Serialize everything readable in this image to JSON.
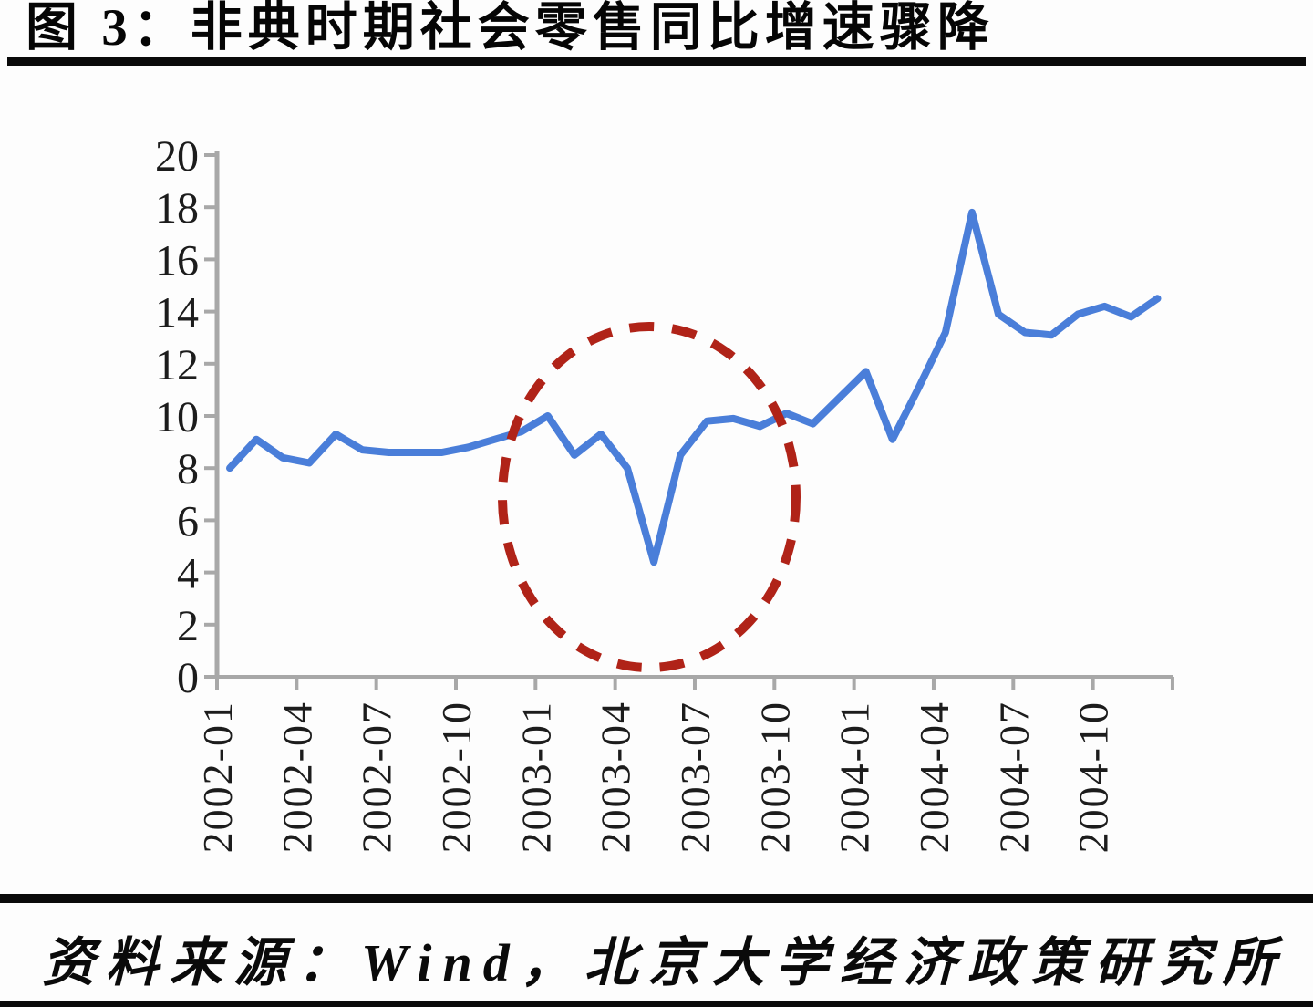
{
  "figure": {
    "title": "图 3：非典时期社会零售同比增速骤降",
    "source": "资料来源：Wind，北京大学经济政策研究所"
  },
  "chart_data": {
    "type": "line",
    "title": "图 3：非典时期社会零售同比增速骤降",
    "x": [
      "2002-01",
      "2002-02",
      "2002-03",
      "2002-04",
      "2002-05",
      "2002-06",
      "2002-07",
      "2002-08",
      "2002-09",
      "2002-10",
      "2002-11",
      "2002-12",
      "2003-01",
      "2003-02",
      "2003-03",
      "2003-04",
      "2003-05",
      "2003-06",
      "2003-07",
      "2003-08",
      "2003-09",
      "2003-10",
      "2003-11",
      "2003-12",
      "2004-01",
      "2004-02",
      "2004-03",
      "2004-04",
      "2004-05",
      "2004-06",
      "2004-07",
      "2004-08",
      "2004-09",
      "2004-10",
      "2004-11",
      "2004-12"
    ],
    "values": [
      8.0,
      9.1,
      8.4,
      8.2,
      9.3,
      8.7,
      8.6,
      8.6,
      8.6,
      8.8,
      9.1,
      9.4,
      10.0,
      8.5,
      9.3,
      8.0,
      4.4,
      8.5,
      9.8,
      9.9,
      9.6,
      10.1,
      9.7,
      10.7,
      11.7,
      9.1,
      11.1,
      13.2,
      17.8,
      13.9,
      13.2,
      13.1,
      13.9,
      14.2,
      13.8,
      14.5
    ],
    "xtick_labels": [
      "2002-01",
      "2002-04",
      "2002-07",
      "2002-10",
      "2003-01",
      "2003-04",
      "2003-07",
      "2003-10",
      "2004-01",
      "2004-04",
      "2004-07",
      "2004-10"
    ],
    "ylim": [
      0,
      20
    ],
    "ytick_step": 2,
    "grid": false,
    "legend": "none",
    "line_color": "#4a7ed9",
    "axis_color": "#a8a8a8",
    "tick_label_color": "#1c1c1c",
    "annotation": {
      "shape": "dashed-ellipse",
      "color": "#b02318",
      "encircles": "2003 年春季（非典时期）增速深坑，最低点 2003-05 约 4.4"
    }
  }
}
